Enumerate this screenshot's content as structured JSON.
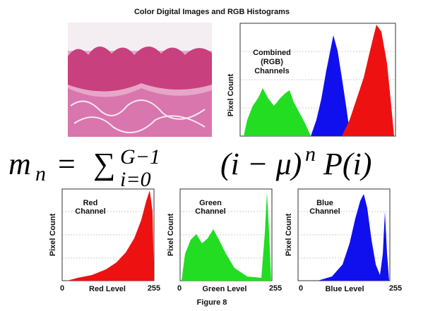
{
  "title": "Color Digital Images and RGB Histograms",
  "combined": {
    "label": [
      "Combined",
      "(RGB)",
      "Channels"
    ],
    "y_label": "Pixel Count"
  },
  "formula": {
    "lhs": "m",
    "lhs_sub": "n",
    "equals": "=",
    "sum": "∑",
    "sum_sub": "i=0",
    "sum_sup": "G−1",
    "body": "(i − μ)",
    "body_sup": "n",
    "tail": "P(i)"
  },
  "panels": [
    {
      "label": [
        "Red",
        "Channel"
      ],
      "y_label": "Pixel Count",
      "x_min": "0",
      "x_label": "Red Level",
      "x_max": "255"
    },
    {
      "label": [
        "Green",
        "Channel"
      ],
      "y_label": "Pixel Count",
      "x_min": "0",
      "x_label": "Green Level",
      "x_max": "255"
    },
    {
      "label": [
        "Blue",
        "Channel"
      ],
      "y_label": "Pixel Count",
      "x_min": "0",
      "x_label": "Blue Level",
      "x_max": "255"
    }
  ],
  "caption": "Figure 8"
}
